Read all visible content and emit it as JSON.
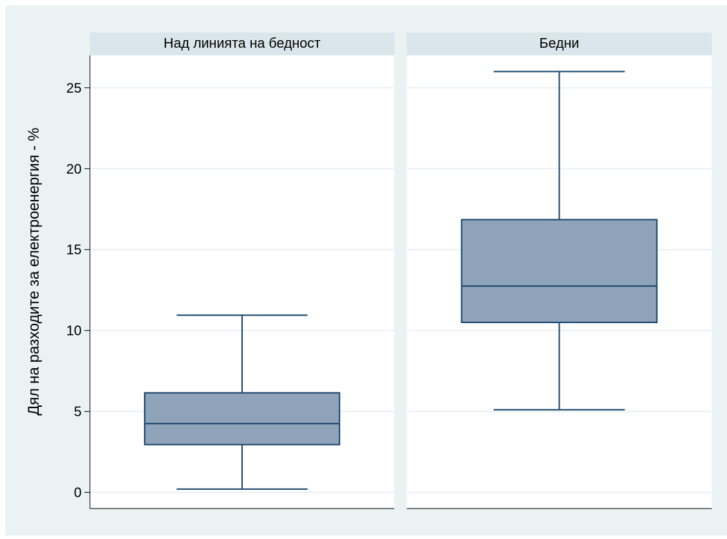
{
  "chart_data": {
    "type": "box",
    "ylabel": "Дял на разходите за електроенергия - %",
    "ylim": [
      -1,
      27
    ],
    "yticks": [
      0,
      5,
      10,
      15,
      20,
      25
    ],
    "grid": true,
    "panels": [
      {
        "title": "Над линията на бедност",
        "box": {
          "whisker_low": 0.2,
          "q1": 2.95,
          "median": 4.25,
          "q3": 6.15,
          "whisker_high": 10.95
        }
      },
      {
        "title": "Бедни",
        "box": {
          "whisker_low": 5.1,
          "q1": 10.5,
          "median": 12.75,
          "q3": 16.85,
          "whisker_high": 26.0
        }
      }
    ]
  },
  "colors": {
    "background": "#eaf2f3",
    "panel_header": "#d9e6eb",
    "plot_area": "#ffffff",
    "box_fill": "#90a4b9",
    "box_stroke": "#1a476f",
    "grid": "#eaf2f3",
    "axis": "#000000"
  }
}
